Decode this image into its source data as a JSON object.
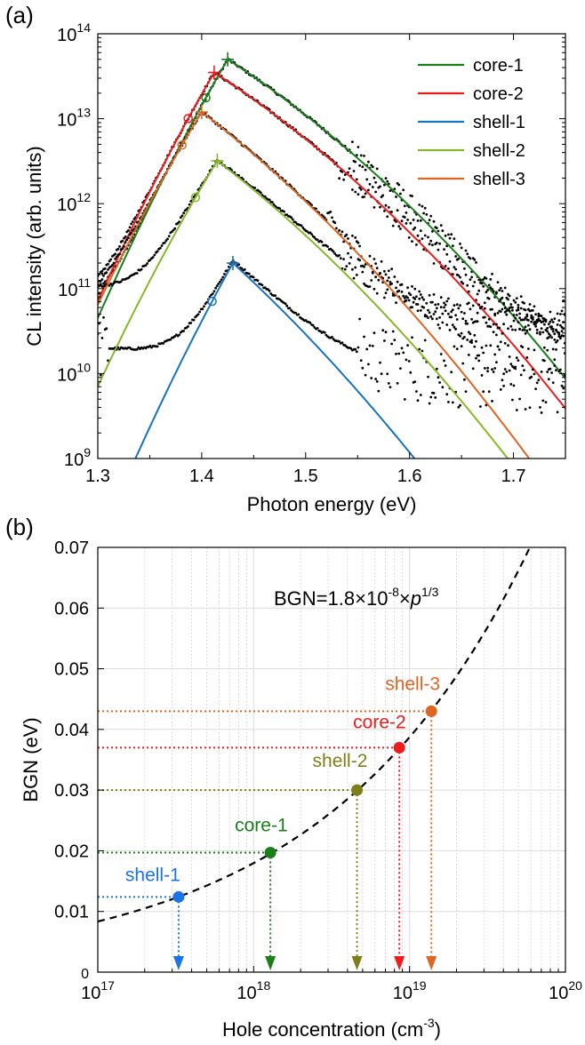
{
  "chart_data": [
    {
      "panel": "(a)",
      "type": "line",
      "xlabel": "Photon energy (eV)",
      "ylabel": "CL intensity (arb. units)",
      "xlim": [
        1.3,
        1.75
      ],
      "ylim": [
        1000000000.0,
        100000000000000.0
      ],
      "yscale": "log",
      "xticks": [
        "1.3",
        "1.4",
        "1.5",
        "1.6",
        "1.7"
      ],
      "yticks": [
        {
          "base": "10",
          "exp": "9"
        },
        {
          "base": "10",
          "exp": "10"
        },
        {
          "base": "10",
          "exp": "11"
        },
        {
          "base": "10",
          "exp": "12"
        },
        {
          "base": "10",
          "exp": "13"
        },
        {
          "base": "10",
          "exp": "14"
        }
      ],
      "legend_position": "top-right",
      "grid": false,
      "series": [
        {
          "name": "core-1",
          "color": "#1a7f1a",
          "peak_x": 1.425,
          "peak_y": 50000000000000.0,
          "low_tail_slope": 21,
          "high_tail_slope": 7.9,
          "circle_marker_x": 1.404,
          "background_level": 30000000000.0
        },
        {
          "name": "core-2",
          "color": "#ee1c1c",
          "peak_x": 1.412,
          "peak_y": 35000000000000.0,
          "low_tail_slope": 21,
          "high_tail_slope": 7.9,
          "circle_marker_x": 1.387,
          "background_level": 40000000000.0
        },
        {
          "name": "shell-1",
          "color": "#1673c2",
          "peak_x": 1.43,
          "peak_y": 200000000000.0,
          "low_tail_slope": 22,
          "high_tail_slope": 11.2,
          "circle_marker_x": 1.41,
          "background_level": 12000000000.0
        },
        {
          "name": "shell-2",
          "color": "#86b828",
          "peak_x": 1.415,
          "peak_y": 3200000000000.0,
          "low_tail_slope": 20,
          "high_tail_slope": 9.4,
          "circle_marker_x": 1.394,
          "background_level": 60000000000.0
        },
        {
          "name": "shell-3",
          "color": "#dd6622",
          "peak_x": 1.4,
          "peak_y": 12000000000000.0,
          "low_tail_slope": 20,
          "high_tail_slope": 9.4,
          "circle_marker_x": 1.381,
          "background_level": 30000000000.0
        }
      ]
    },
    {
      "panel": "(b)",
      "type": "scatter",
      "xlabel": "Hole concentration (cm",
      "xlabel_sup": "-3",
      "xlabel_suffix": ")",
      "ylabel": "BGN (eV)",
      "xlim": [
        1e+17,
        1e+20
      ],
      "ylim": [
        0,
        0.07
      ],
      "xscale": "log",
      "grid": true,
      "xticks": [
        {
          "base": "10",
          "exp": "17"
        },
        {
          "base": "10",
          "exp": "18"
        },
        {
          "base": "10",
          "exp": "19"
        },
        {
          "base": "10",
          "exp": "20"
        }
      ],
      "yticks": [
        "0",
        "0.01",
        "0.02",
        "0.03",
        "0.04",
        "0.05",
        "0.06",
        "0.07"
      ],
      "formula": {
        "lhs": "BGN=1.8×10",
        "exp1": "-8",
        "times": "×",
        "var": "p",
        "exp2": "1/3"
      },
      "fit_coefficient": 1.8e-08,
      "fit_exponent": 0.3333,
      "points": [
        {
          "name": "shell-1",
          "x": 3.3e+17,
          "y": 0.0124,
          "color": "#1b73e8"
        },
        {
          "name": "core-1",
          "x": 1.28e+18,
          "y": 0.0197,
          "color": "#1a7f1a"
        },
        {
          "name": "shell-2",
          "x": 4.6e+18,
          "y": 0.03,
          "color": "#7f7f1a"
        },
        {
          "name": "core-2",
          "x": 8.6e+18,
          "y": 0.037,
          "color": "#ee1c1c"
        },
        {
          "name": "shell-3",
          "x": 1.38e+19,
          "y": 0.043,
          "color": "#dd6622"
        }
      ]
    }
  ]
}
